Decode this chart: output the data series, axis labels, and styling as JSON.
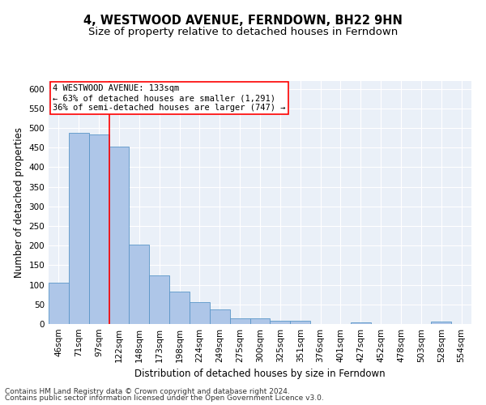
{
  "title": "4, WESTWOOD AVENUE, FERNDOWN, BH22 9HN",
  "subtitle": "Size of property relative to detached houses in Ferndown",
  "xlabel": "Distribution of detached houses by size in Ferndown",
  "ylabel": "Number of detached properties",
  "categories": [
    "46sqm",
    "71sqm",
    "97sqm",
    "122sqm",
    "148sqm",
    "173sqm",
    "198sqm",
    "224sqm",
    "249sqm",
    "275sqm",
    "300sqm",
    "325sqm",
    "351sqm",
    "376sqm",
    "401sqm",
    "427sqm",
    "452sqm",
    "478sqm",
    "503sqm",
    "528sqm",
    "554sqm"
  ],
  "values": [
    105,
    487,
    483,
    452,
    202,
    123,
    82,
    56,
    38,
    15,
    15,
    9,
    9,
    0,
    0,
    5,
    0,
    0,
    0,
    7,
    0
  ],
  "bar_color": "#aec6e8",
  "bar_edge_color": "#5a96c8",
  "annotation_line1": "4 WESTWOOD AVENUE: 133sqm",
  "annotation_line2": "← 63% of detached houses are smaller (1,291)",
  "annotation_line3": "36% of semi-detached houses are larger (747) →",
  "vline_x": 2.5,
  "vline_color": "red",
  "ylim": [
    0,
    620
  ],
  "yticks": [
    0,
    50,
    100,
    150,
    200,
    250,
    300,
    350,
    400,
    450,
    500,
    550,
    600
  ],
  "background_color": "#eaf0f8",
  "grid_color": "#ffffff",
  "footer_line1": "Contains HM Land Registry data © Crown copyright and database right 2024.",
  "footer_line2": "Contains public sector information licensed under the Open Government Licence v3.0.",
  "title_fontsize": 10.5,
  "subtitle_fontsize": 9.5,
  "axis_label_fontsize": 8.5,
  "tick_fontsize": 7.5,
  "annotation_fontsize": 7.5,
  "footer_fontsize": 6.5
}
